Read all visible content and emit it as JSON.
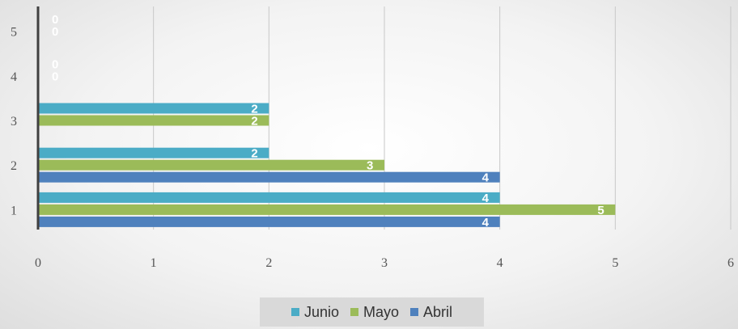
{
  "chart_data": {
    "type": "bar",
    "orientation": "horizontal",
    "categories": [
      "1",
      "2",
      "3",
      "4",
      "5"
    ],
    "series": [
      {
        "name": "Abril",
        "color": "#4f81bd",
        "values": [
          4,
          4,
          0,
          0,
          0
        ]
      },
      {
        "name": "Mayo",
        "color": "#9bbb59",
        "values": [
          5,
          3,
          2,
          0,
          0
        ]
      },
      {
        "name": "Junio",
        "color": "#4bacc6",
        "values": [
          4,
          2,
          2,
          0,
          0
        ]
      }
    ],
    "x_ticks": [
      "0",
      "1",
      "2",
      "3",
      "4",
      "5",
      "6"
    ],
    "xlim": [
      0,
      6
    ],
    "grid": "vertical",
    "legend_position": "bottom",
    "legend_order": [
      "Junio",
      "Mayo",
      "Abril"
    ],
    "data_labels_shown": {
      "Abril": [
        true,
        true,
        false,
        false,
        false
      ],
      "Mayo": [
        true,
        true,
        true,
        true,
        true
      ],
      "Junio": [
        true,
        true,
        true,
        true,
        true
      ]
    }
  }
}
